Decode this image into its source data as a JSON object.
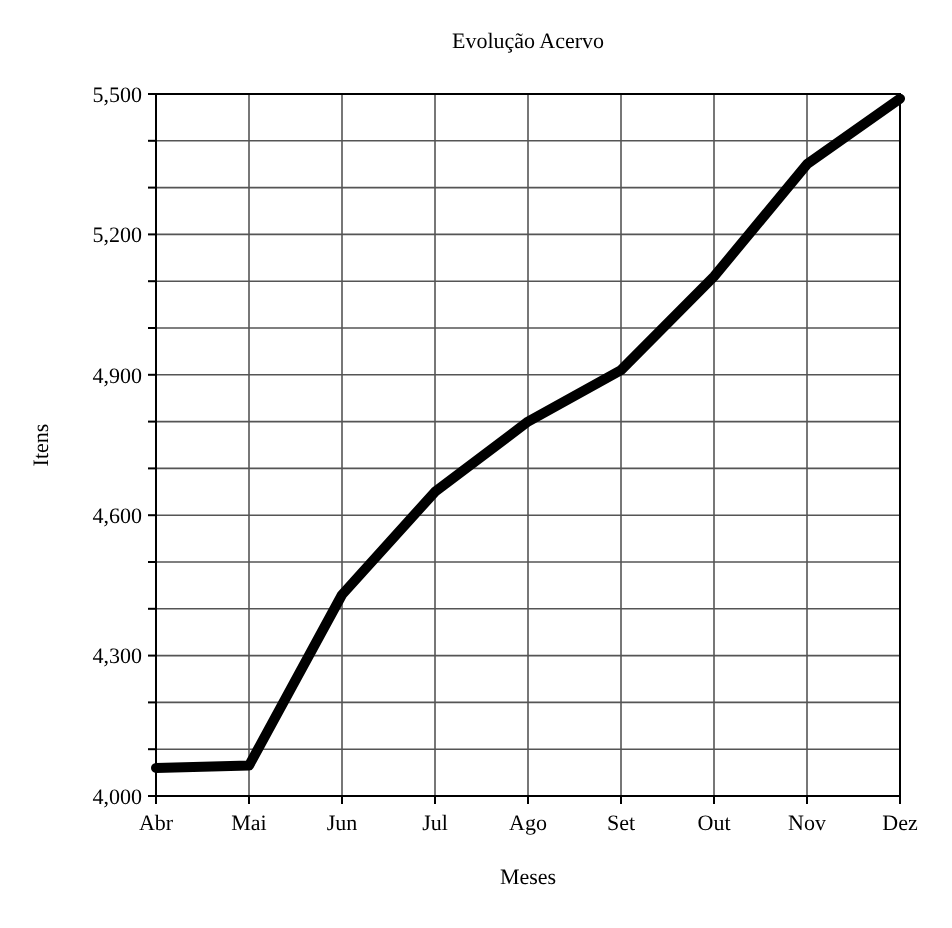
{
  "chart_data": {
    "type": "line",
    "title": "Evolução Acervo",
    "xlabel": "Meses",
    "ylabel": "Itens",
    "categories": [
      "Abr",
      "Mai",
      "Jun",
      "Jul",
      "Ago",
      "Set",
      "Out",
      "Nov",
      "Dez"
    ],
    "series": [
      {
        "color": "#000000",
        "values": [
          4060,
          4065,
          4430,
          4650,
          4800,
          4910,
          5110,
          5350,
          5490
        ]
      }
    ],
    "ylim": [
      4000,
      5500
    ],
    "yticks": [
      {
        "value": 4000,
        "label": "4,000"
      },
      {
        "value": 4100,
        "label": null
      },
      {
        "value": 4200,
        "label": null
      },
      {
        "value": 4300,
        "label": "4,300"
      },
      {
        "value": 4400,
        "label": null
      },
      {
        "value": 4500,
        "label": null
      },
      {
        "value": 4600,
        "label": "4,600"
      },
      {
        "value": 4700,
        "label": null
      },
      {
        "value": 4800,
        "label": null
      },
      {
        "value": 4900,
        "label": "4,900"
      },
      {
        "value": 5000,
        "label": null
      },
      {
        "value": 5100,
        "label": null
      },
      {
        "value": 5200,
        "label": "5,200"
      },
      {
        "value": 5300,
        "label": null
      },
      {
        "value": 5400,
        "label": null
      },
      {
        "value": 5500,
        "label": "5,500"
      }
    ],
    "grid": true,
    "marker": "none",
    "line_style": "solid"
  }
}
